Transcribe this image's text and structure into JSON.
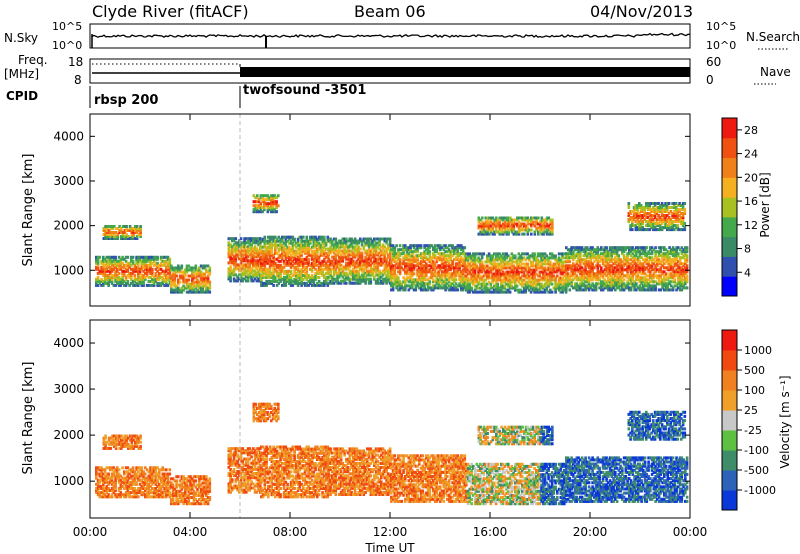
{
  "header": {
    "station": "Clyde River (fitACF)",
    "beam": "Beam 06",
    "date": "04/Nov/2013"
  },
  "noise_panel": {
    "left_label": "N.Sky",
    "left_ticks": [
      "10^5",
      "10^0"
    ],
    "right_label": "N.Search",
    "right_ticks": [
      "10^5",
      "10^0"
    ]
  },
  "freq_panel": {
    "left_label_line1": "Freq.",
    "left_label_line2": "[MHz]",
    "left_ticks": [
      "18",
      "8"
    ],
    "right_label": "Nave",
    "right_ticks": [
      "60",
      "0"
    ]
  },
  "cpid_panel": {
    "label": "CPID",
    "programs": [
      {
        "name": "rbsp 200",
        "start_hour": 0
      },
      {
        "name": "twofsound -3501",
        "start_hour": 6.0
      }
    ]
  },
  "colors": {
    "power_scale": [
      "#0000ff",
      "#3050b0",
      "#3a8a68",
      "#44a84c",
      "#a8c020",
      "#f5b020",
      "#f08018",
      "#f05010",
      "#ee1a10"
    ],
    "velocity_scale": [
      "#0a38d8",
      "#2c63b8",
      "#3e8c6a",
      "#5ec040",
      "#c8c8c8",
      "#f0a028",
      "#f08020",
      "#f04a10",
      "#ee1a10"
    ]
  },
  "chart_data": [
    {
      "type": "heatmap",
      "panel": "power",
      "xlabel": "Time UT",
      "ylabel": "Slant Range [km]",
      "xlim": [
        0,
        24
      ],
      "ylim": [
        200,
        4500
      ],
      "xticks": [
        "00:00",
        "04:00",
        "08:00",
        "12:00",
        "16:00",
        "20:00",
        "00:00"
      ],
      "yticks": [
        "1000",
        "2000",
        "3000",
        "4000"
      ],
      "colorbar_label": "Power [dB]",
      "colorbar_ticks": [
        "4",
        "8",
        "12",
        "16",
        "20",
        "24",
        "28"
      ],
      "colorbar_range": [
        0,
        30
      ]
    },
    {
      "type": "heatmap",
      "panel": "velocity",
      "xlabel": "Time UT",
      "ylabel": "Slant Range [km]",
      "xlim": [
        0,
        24
      ],
      "ylim": [
        200,
        4500
      ],
      "xticks": [
        "00:00",
        "04:00",
        "08:00",
        "12:00",
        "16:00",
        "20:00",
        "00:00"
      ],
      "yticks": [
        "1000",
        "2000",
        "3000",
        "4000"
      ],
      "colorbar_label": "Velocity [m s⁻¹]",
      "colorbar_ticks": [
        "1000",
        "500",
        "100",
        "25",
        "-25",
        "-100",
        "-500",
        "-1000"
      ]
    }
  ]
}
